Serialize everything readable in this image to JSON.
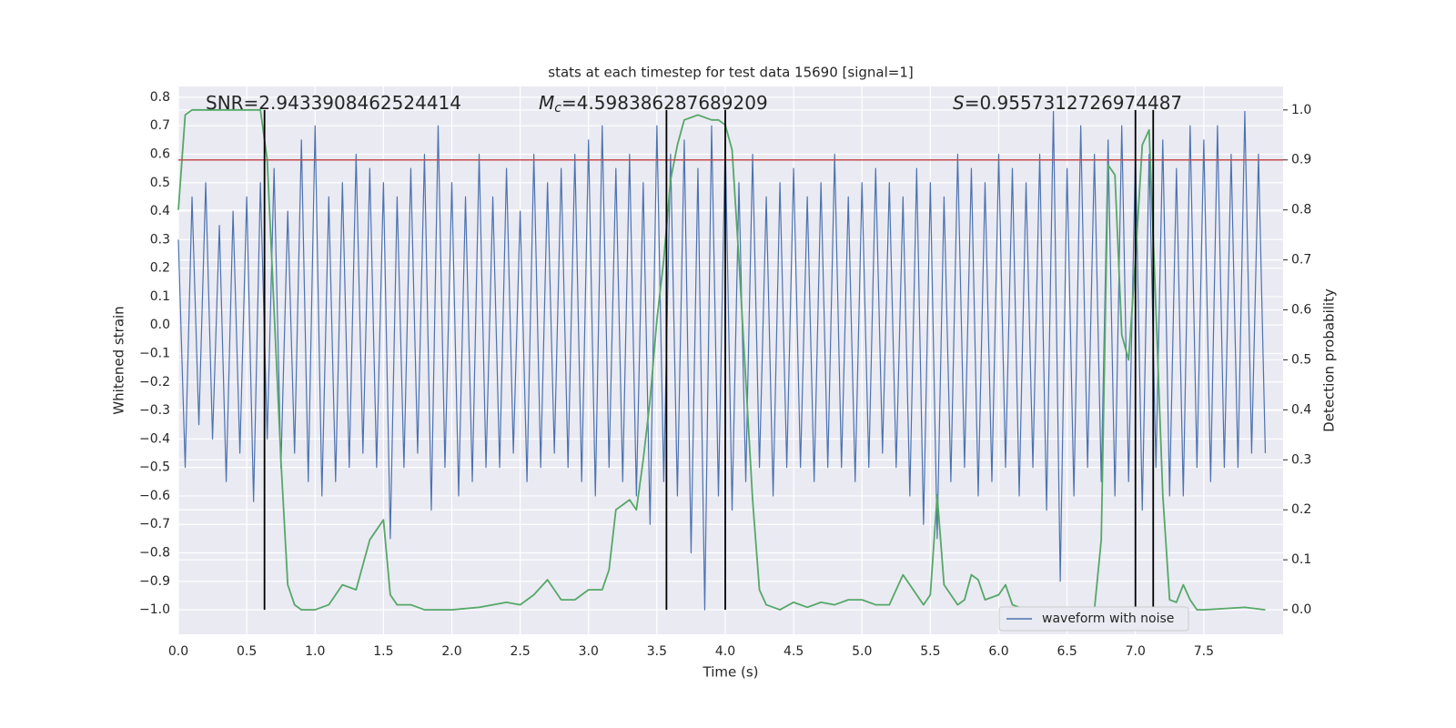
{
  "chart_data": {
    "type": "line",
    "title": "stats at each timestep for test data 15690 [signal=1]",
    "xlabel": "Time (s)",
    "ylabel": "Whitened strain",
    "y2label": "Detection probability",
    "xlim": [
      0,
      8.08
    ],
    "ylim": [
      -1.086,
      0.838
    ],
    "y2lim": [
      -0.049,
      1.047
    ],
    "xticks": [
      {
        "value": 0,
        "label": "0.0"
      },
      0.5,
      {
        "value": 1,
        "label": "1.0"
      },
      1.5,
      {
        "value": 2,
        "label": "2.0"
      },
      2.5,
      {
        "value": 3,
        "label": "3.0"
      },
      3.5,
      {
        "value": 4,
        "label": "4.0"
      },
      4.5,
      {
        "value": 5,
        "label": "5.0"
      },
      5.5,
      {
        "value": 6,
        "label": "6.0"
      },
      6.5,
      {
        "value": 7,
        "label": "7.0"
      },
      7.5
    ],
    "yticks": [
      {
        "value": -1.0,
        "label": "−1.0"
      },
      {
        "value": -0.9,
        "label": "−0.9"
      },
      {
        "value": -0.8,
        "label": "−0.8"
      },
      {
        "value": -0.7,
        "label": "−0.7"
      },
      {
        "value": -0.6,
        "label": "−0.6"
      },
      {
        "value": -0.5,
        "label": "−0.5"
      },
      {
        "value": -0.4,
        "label": "−0.4"
      },
      {
        "value": -0.3,
        "label": "−0.3"
      },
      {
        "value": -0.2,
        "label": "−0.2"
      },
      {
        "value": -0.1,
        "label": "−0.1"
      },
      {
        "value": 0,
        "label": "0.0"
      },
      0.1,
      0.2,
      0.3,
      0.4,
      0.5,
      0.6,
      0.7,
      0.8
    ],
    "y2ticks": [
      {
        "value": 0,
        "label": "0.0"
      },
      0.1,
      0.2,
      0.3,
      0.4,
      0.5,
      0.6,
      0.7,
      0.8,
      0.9,
      {
        "value": 1,
        "label": "1.0"
      }
    ],
    "grid": true,
    "legend": "lower right",
    "series": [
      {
        "name": "waveform with noise",
        "color": "#4c72b0",
        "x": [
          0,
          0.05,
          0.1,
          0.15,
          0.2,
          0.25,
          0.3,
          0.35,
          0.4,
          0.45,
          0.5,
          0.55,
          0.6,
          0.65,
          0.7,
          0.75,
          0.8,
          0.85,
          0.9,
          0.95,
          1.0,
          1.05,
          1.1,
          1.15,
          1.2,
          1.25,
          1.3,
          1.35,
          1.4,
          1.45,
          1.5,
          1.55,
          1.6,
          1.65,
          1.7,
          1.75,
          1.8,
          1.85,
          1.9,
          1.95,
          2.0,
          2.05,
          2.1,
          2.15,
          2.2,
          2.25,
          2.3,
          2.35,
          2.4,
          2.45,
          2.5,
          2.55,
          2.6,
          2.65,
          2.7,
          2.75,
          2.8,
          2.85,
          2.9,
          2.95,
          3.0,
          3.05,
          3.1,
          3.15,
          3.2,
          3.25,
          3.3,
          3.35,
          3.4,
          3.45,
          3.5,
          3.55,
          3.6,
          3.65,
          3.7,
          3.75,
          3.8,
          3.85,
          3.9,
          3.95,
          4.0,
          4.05,
          4.1,
          4.15,
          4.2,
          4.25,
          4.3,
          4.35,
          4.4,
          4.45,
          4.5,
          4.55,
          4.6,
          4.65,
          4.7,
          4.75,
          4.8,
          4.85,
          4.9,
          4.95,
          5.0,
          5.05,
          5.1,
          5.15,
          5.2,
          5.25,
          5.3,
          5.35,
          5.4,
          5.45,
          5.5,
          5.55,
          5.6,
          5.65,
          5.7,
          5.75,
          5.8,
          5.85,
          5.9,
          5.95,
          6.0,
          6.05,
          6.1,
          6.15,
          6.2,
          6.25,
          6.3,
          6.35,
          6.4,
          6.45,
          6.5,
          6.55,
          6.6,
          6.65,
          6.7,
          6.75,
          6.8,
          6.85,
          6.9,
          6.95,
          7.0,
          7.05,
          7.1,
          7.15,
          7.2,
          7.25,
          7.3,
          7.35,
          7.4,
          7.45,
          7.5,
          7.55,
          7.6,
          7.65,
          7.7,
          7.75,
          7.8,
          7.85,
          7.9,
          7.95
        ],
        "values": [
          0.3,
          -0.5,
          0.45,
          -0.35,
          0.5,
          -0.4,
          0.35,
          -0.55,
          0.4,
          -0.45,
          0.45,
          -0.62,
          0.5,
          -0.4,
          0.55,
          -0.5,
          0.4,
          -0.45,
          0.65,
          -0.55,
          0.7,
          -0.6,
          0.45,
          -0.55,
          0.5,
          -0.5,
          0.6,
          -0.45,
          0.55,
          -0.5,
          0.5,
          -0.75,
          0.45,
          -0.5,
          0.55,
          -0.45,
          0.6,
          -0.65,
          0.7,
          -0.5,
          0.5,
          -0.6,
          0.45,
          -0.55,
          0.6,
          -0.5,
          0.45,
          -0.5,
          0.55,
          -0.45,
          0.4,
          -0.55,
          0.6,
          -0.5,
          0.5,
          -0.45,
          0.55,
          -0.5,
          0.6,
          -0.55,
          0.65,
          -0.6,
          0.7,
          -0.5,
          0.55,
          -0.55,
          0.6,
          -0.6,
          0.5,
          -0.7,
          0.7,
          -0.55,
          0.6,
          -0.6,
          0.65,
          -0.8,
          0.55,
          -1.0,
          0.7,
          -0.6,
          0.65,
          -0.65,
          0.5,
          -0.55,
          0.6,
          -0.5,
          0.45,
          -0.6,
          0.5,
          -0.5,
          0.55,
          -0.5,
          0.45,
          -0.55,
          0.5,
          -0.5,
          0.6,
          -0.5,
          0.45,
          -0.55,
          0.5,
          -0.5,
          0.55,
          -0.45,
          0.5,
          -0.5,
          0.45,
          -0.6,
          0.55,
          -0.7,
          0.5,
          -0.75,
          0.45,
          -0.55,
          0.6,
          -0.5,
          0.55,
          -0.6,
          0.5,
          -0.55,
          0.6,
          -0.5,
          0.55,
          -0.6,
          0.5,
          -0.5,
          0.6,
          -0.65,
          0.75,
          -0.9,
          0.55,
          -0.6,
          0.7,
          -0.5,
          0.6,
          -0.55,
          0.65,
          -0.6,
          0.7,
          -0.55,
          0.6,
          -0.65,
          0.6,
          -0.5,
          0.65,
          -0.6,
          0.55,
          -0.6,
          0.7,
          -0.5,
          0.65,
          -0.55,
          0.7,
          -0.5,
          0.6,
          -0.5,
          0.75,
          -0.45,
          0.6,
          -0.45
        ]
      },
      {
        "color": "#55a868",
        "axis": "y2",
        "x": [
          0,
          0.05,
          0.1,
          0.2,
          0.3,
          0.4,
          0.5,
          0.6,
          0.65,
          0.7,
          0.75,
          0.8,
          0.85,
          0.9,
          1.0,
          1.1,
          1.2,
          1.3,
          1.4,
          1.5,
          1.55,
          1.6,
          1.7,
          1.8,
          2.0,
          2.2,
          2.4,
          2.5,
          2.6,
          2.7,
          2.8,
          2.9,
          3.0,
          3.1,
          3.15,
          3.2,
          3.3,
          3.35,
          3.4,
          3.45,
          3.5,
          3.55,
          3.6,
          3.65,
          3.7,
          3.8,
          3.9,
          3.95,
          4.0,
          4.05,
          4.1,
          4.2,
          4.25,
          4.3,
          4.4,
          4.5,
          4.6,
          4.7,
          4.8,
          4.9,
          5.0,
          5.1,
          5.2,
          5.3,
          5.35,
          5.45,
          5.5,
          5.55,
          5.6,
          5.7,
          5.75,
          5.8,
          5.85,
          5.9,
          6.0,
          6.05,
          6.1,
          6.2,
          6.5,
          6.7,
          6.75,
          6.8,
          6.85,
          6.9,
          6.95,
          7.0,
          7.05,
          7.1,
          7.15,
          7.2,
          7.25,
          7.3,
          7.35,
          7.4,
          7.45,
          7.5,
          7.8,
          7.95
        ],
        "values": [
          0.8,
          0.99,
          1.0,
          1.0,
          1.0,
          1.0,
          1.0,
          1.0,
          0.9,
          0.6,
          0.3,
          0.05,
          0.01,
          0.0,
          0.0,
          0.01,
          0.05,
          0.04,
          0.14,
          0.18,
          0.03,
          0.01,
          0.01,
          0.0,
          0.0,
          0.005,
          0.015,
          0.01,
          0.03,
          0.06,
          0.02,
          0.02,
          0.04,
          0.04,
          0.08,
          0.2,
          0.22,
          0.2,
          0.3,
          0.42,
          0.58,
          0.7,
          0.86,
          0.93,
          0.98,
          0.99,
          0.98,
          0.98,
          0.97,
          0.92,
          0.7,
          0.22,
          0.04,
          0.01,
          0.0,
          0.015,
          0.005,
          0.015,
          0.01,
          0.02,
          0.02,
          0.01,
          0.01,
          0.07,
          0.05,
          0.01,
          0.03,
          0.23,
          0.05,
          0.01,
          0.02,
          0.07,
          0.06,
          0.02,
          0.03,
          0.05,
          0.01,
          0.0,
          0.0,
          0.0,
          0.14,
          0.89,
          0.87,
          0.55,
          0.5,
          0.7,
          0.93,
          0.96,
          0.6,
          0.23,
          0.02,
          0.015,
          0.05,
          0.02,
          0.0,
          0.0,
          0.005,
          0.0
        ]
      }
    ],
    "hline": {
      "y": 0.9,
      "axis": "y2",
      "color": "#c44e52"
    },
    "vlines": {
      "x": [
        0.63,
        3.57,
        4.0,
        7.0,
        7.13
      ],
      "ymin": 0,
      "ymax": 1,
      "axis": "y2",
      "color": "#000000"
    },
    "annotations": [
      {
        "text": "SNR=2.9433908462524414"
      },
      {
        "symbol": "M",
        "subscript": "c",
        "text": "=4.598386287689209"
      },
      {
        "symbol": "S",
        "text": "=0.9557312726974487"
      }
    ]
  }
}
